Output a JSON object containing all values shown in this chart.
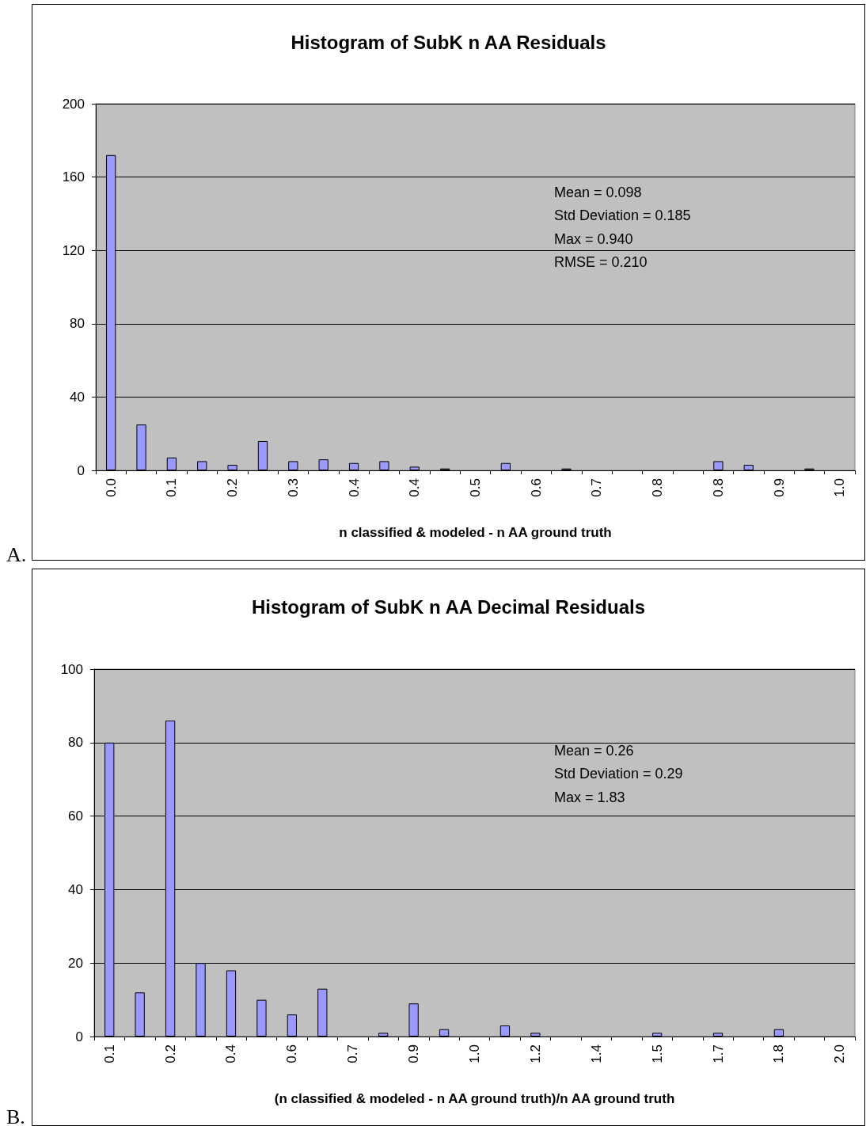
{
  "chart_data": [
    {
      "type": "bar",
      "title": "Histogram of SubK n AA Residuals",
      "xlabel": "n classified & modeled - n AA ground truth",
      "categories": [
        "0.0",
        null,
        "0.1",
        null,
        "0.2",
        null,
        "0.3",
        null,
        "0.4",
        null,
        "0.4",
        null,
        "0.5",
        null,
        "0.6",
        null,
        "0.7",
        null,
        "0.8",
        null,
        "0.8",
        null,
        "0.9",
        null,
        "1.0"
      ],
      "values": [
        172,
        25,
        7,
        5,
        3,
        16,
        5,
        6,
        4,
        5,
        2,
        1,
        0,
        4,
        0,
        1,
        0,
        0,
        0,
        0,
        5,
        3,
        0,
        1,
        0
      ],
      "color": "#9999ff",
      "ylim": [
        0,
        200
      ],
      "yticks": [
        0,
        40,
        80,
        120,
        160,
        200
      ],
      "grid": "y",
      "annotations": [
        "Mean = 0.098",
        "Std Deviation = 0.185",
        "Max = 0.940",
        "RMSE = 0.210",
        "A."
      ]
    },
    {
      "type": "bar",
      "title": "Histogram of SubK n AA Decimal Residuals",
      "xlabel": "(n classified & modeled - n AA ground truth)/n AA ground truth",
      "categories": [
        "0.1",
        null,
        "0.2",
        null,
        "0.4",
        null,
        "0.6",
        null,
        "0.7",
        null,
        "0.9",
        null,
        "1.0",
        null,
        "1.2",
        null,
        "1.4",
        null,
        "1.5",
        null,
        "1.7",
        null,
        "1.8",
        null,
        "2.0"
      ],
      "values": [
        80,
        12,
        86,
        20,
        18,
        10,
        6,
        13,
        0,
        1,
        9,
        2,
        0,
        3,
        1,
        0,
        0,
        0,
        1,
        0,
        1,
        0,
        2,
        0,
        0
      ],
      "color": "#9999ff",
      "ylim": [
        0,
        100
      ],
      "yticks": [
        0,
        20,
        40,
        60,
        80,
        100
      ],
      "grid": "y",
      "annotations": [
        "Mean = 0.26",
        "Std Deviation = 0.29",
        "Max = 1.83",
        "B."
      ]
    }
  ]
}
